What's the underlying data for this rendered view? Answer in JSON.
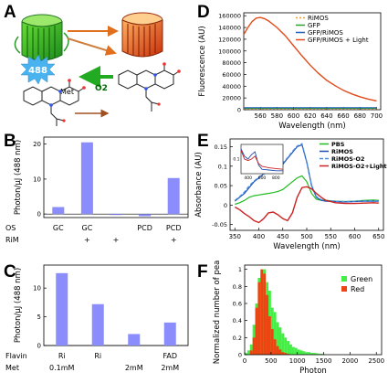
{
  "panel_letters": [
    "A",
    "B",
    "C",
    "D",
    "E",
    "F"
  ],
  "panel_a": {
    "badge": "488",
    "o2_label": "O2",
    "met_label": "Met"
  },
  "chart_data": [
    {
      "panel": "B",
      "type": "bar",
      "ylabel": "Photon/μJ (488 nm)",
      "ylim": [
        -1,
        22
      ],
      "yticks": [
        0,
        10,
        20
      ],
      "categories": [
        "1",
        "2",
        "3",
        "4",
        "5"
      ],
      "values": [
        2.0,
        20.5,
        -0.2,
        -0.6,
        10.3
      ],
      "row_labels": [
        {
          "name": "OS",
          "values": [
            "GC",
            "GC",
            "",
            "PCD",
            "PCD"
          ]
        },
        {
          "name": "RiM",
          "values": [
            "",
            "+",
            "+",
            "",
            "+"
          ]
        }
      ],
      "color": "#8a8dfb"
    },
    {
      "panel": "C",
      "type": "bar",
      "ylabel": "Photon/μJ (488 nm)",
      "ylim": [
        0,
        14
      ],
      "yticks": [
        0,
        5,
        10
      ],
      "categories": [
        "1",
        "2",
        "3",
        "4"
      ],
      "values": [
        12.6,
        7.2,
        2.0,
        4.0
      ],
      "row_labels": [
        {
          "name": "Flavin",
          "values": [
            "Ri",
            "Ri",
            "",
            "FAD"
          ]
        },
        {
          "name": "Met",
          "values": [
            "0.1mM",
            "",
            "2mM",
            "2mM"
          ]
        }
      ],
      "color": "#8a8dfb"
    },
    {
      "panel": "D",
      "type": "line",
      "xlabel": "Wavelength (nm)",
      "ylabel": "Fluorescence (AU)",
      "xlim": [
        540,
        705
      ],
      "ylim": [
        0,
        165000
      ],
      "xticks": [
        560,
        580,
        600,
        620,
        640,
        660,
        680,
        700
      ],
      "yticks": [
        0,
        20000,
        40000,
        60000,
        80000,
        100000,
        120000,
        140000,
        160000
      ],
      "legend": "top-right",
      "series": [
        {
          "name": "RiMOS",
          "color": "#f0a020",
          "dash": "2,2",
          "x": [
            540,
            700
          ],
          "y": [
            1500,
            1500
          ]
        },
        {
          "name": "GFP",
          "color": "#2ca02c",
          "dash": "",
          "x": [
            540,
            700
          ],
          "y": [
            2500,
            2500
          ]
        },
        {
          "name": "GFP/RiMOS",
          "color": "#1f5fb8",
          "dash": "",
          "x": [
            540,
            700
          ],
          "y": [
            3500,
            3500
          ]
        },
        {
          "name": "GFP/RiMOS + Light",
          "color": "#e24a1a",
          "dash": "",
          "x": [
            540,
            545,
            550,
            555,
            560,
            565,
            570,
            580,
            590,
            600,
            610,
            620,
            630,
            640,
            650,
            660,
            670,
            680,
            690,
            700
          ],
          "y": [
            128000,
            140000,
            150000,
            156000,
            157000,
            155000,
            151000,
            140000,
            126000,
            109000,
            92000,
            76000,
            62000,
            50000,
            41000,
            33000,
            27000,
            22000,
            18000,
            15000
          ]
        }
      ]
    },
    {
      "panel": "E",
      "type": "line",
      "xlabel": "Wavelength (nm)",
      "ylabel": "Absorbance (AU)",
      "xlim": [
        340,
        660
      ],
      "ylim": [
        -0.065,
        0.17
      ],
      "xticks": [
        350,
        400,
        450,
        500,
        550,
        600,
        650
      ],
      "yticks": [
        -0.05,
        0,
        0.05,
        0.1,
        0.15
      ],
      "legend": "top-right",
      "series": [
        {
          "name": "PBS",
          "color": "#22bb22",
          "dash": "",
          "x": [
            350,
            360,
            370,
            380,
            390,
            400,
            410,
            420,
            430,
            440,
            450,
            460,
            470,
            480,
            490,
            500,
            510,
            520,
            530,
            540,
            560,
            580,
            600,
            620,
            640,
            650
          ],
          "y": [
            0.002,
            0.006,
            0.012,
            0.02,
            0.024,
            0.026,
            0.028,
            0.03,
            0.032,
            0.035,
            0.04,
            0.05,
            0.06,
            0.07,
            0.075,
            0.06,
            0.03,
            0.015,
            0.012,
            0.012,
            0.01,
            0.009,
            0.01,
            0.012,
            0.013,
            0.012
          ]
        },
        {
          "name": "RiMOS",
          "color": "#1f4fb0",
          "dash": "",
          "x": [
            350,
            360,
            370,
            380,
            390,
            400,
            410,
            420,
            430,
            440,
            450,
            460,
            470,
            480,
            490,
            500,
            510,
            520,
            530,
            540,
            560,
            580,
            600,
            620,
            640,
            650
          ],
          "y": [
            0.01,
            0.02,
            0.03,
            0.045,
            0.06,
            0.07,
            0.08,
            0.085,
            0.09,
            0.095,
            0.105,
            0.12,
            0.135,
            0.15,
            0.155,
            0.11,
            0.05,
            0.02,
            0.012,
            0.01,
            0.009,
            0.008,
            0.009,
            0.01,
            0.01,
            0.01
          ]
        },
        {
          "name": "RiMOS·O2",
          "color": "#4a90e2",
          "dash": "4,2",
          "x": [
            350,
            360,
            370,
            380,
            390,
            400,
            410,
            420,
            430,
            440,
            450,
            460,
            470,
            480,
            490,
            500,
            510,
            520,
            530,
            540,
            560,
            580,
            600,
            620,
            640,
            650
          ],
          "y": [
            0.012,
            0.022,
            0.034,
            0.05,
            0.062,
            0.072,
            0.08,
            0.086,
            0.092,
            0.098,
            0.108,
            0.122,
            0.138,
            0.152,
            0.158,
            0.112,
            0.052,
            0.022,
            0.014,
            0.012,
            0.01,
            0.009,
            0.01,
            0.011,
            0.011,
            0.011
          ]
        },
        {
          "name": "RiMOS·O2+Light",
          "color": "#cc2222",
          "dash": "",
          "x": [
            350,
            360,
            370,
            380,
            390,
            400,
            410,
            420,
            430,
            440,
            450,
            460,
            470,
            480,
            490,
            500,
            510,
            520,
            530,
            540,
            560,
            580,
            600,
            620,
            640,
            650
          ],
          "y": [
            -0.005,
            -0.012,
            -0.022,
            -0.03,
            -0.04,
            -0.045,
            -0.035,
            -0.02,
            -0.018,
            -0.025,
            -0.035,
            -0.04,
            -0.02,
            0.02,
            0.045,
            0.047,
            0.042,
            0.03,
            0.02,
            0.012,
            0.006,
            0.004,
            0.004,
            0.005,
            0.006,
            0.005
          ]
        }
      ],
      "inset": {
        "xlim": [
          300,
          900
        ],
        "ylim": [
          0,
          0.2
        ],
        "xticks": [
          400,
          600,
          800
        ],
        "yticks": [
          0.1
        ],
        "series": [
          {
            "color": "#1f4fb0",
            "x": [
              300,
              350,
              400,
              450,
              500,
              550,
              600,
              700,
              800,
              900
            ],
            "y": [
              0.17,
              0.12,
              0.1,
              0.13,
              0.15,
              0.06,
              0.03,
              0.025,
              0.02,
              0.02
            ]
          },
          {
            "color": "#cc2222",
            "x": [
              300,
              350,
              400,
              450,
              500,
              550,
              600,
              700,
              800,
              900
            ],
            "y": [
              0.16,
              0.1,
              0.09,
              0.1,
              0.12,
              0.07,
              0.05,
              0.04,
              0.035,
              0.03
            ]
          }
        ]
      }
    },
    {
      "panel": "F",
      "type": "bar",
      "xlabel": "Photon",
      "ylabel": "Normalized number of peak",
      "xlim": [
        0,
        2600
      ],
      "ylim": [
        0,
        1.05
      ],
      "xticks": [
        0,
        500,
        1000,
        1500,
        2000,
        2500
      ],
      "yticks": [
        0,
        0.2,
        0.4,
        0.6,
        0.8,
        1.0
      ],
      "legend": "top-right",
      "bin_width": 50,
      "series": [
        {
          "name": "Green",
          "color": "#44ee44",
          "bin_starts": [
            0,
            50,
            100,
            150,
            200,
            250,
            300,
            350,
            400,
            450,
            500,
            550,
            600,
            650,
            700,
            750,
            800,
            850,
            900,
            950,
            1000,
            1050,
            1100,
            1150,
            1200,
            1250,
            1300,
            1350,
            1400,
            1450,
            1500
          ],
          "values": [
            0.02,
            0.05,
            0.12,
            0.35,
            0.6,
            0.9,
            0.95,
            1.0,
            0.85,
            0.75,
            0.55,
            0.5,
            0.38,
            0.32,
            0.25,
            0.2,
            0.16,
            0.12,
            0.09,
            0.08,
            0.06,
            0.05,
            0.04,
            0.03,
            0.03,
            0.02,
            0.02,
            0.015,
            0.01,
            0.01,
            0.005
          ]
        },
        {
          "name": "Red",
          "color": "#ee4411",
          "bin_starts": [
            100,
            150,
            200,
            250,
            300,
            350,
            400,
            450,
            500,
            550,
            600,
            650,
            700,
            750,
            800
          ],
          "values": [
            0.05,
            0.2,
            0.55,
            0.85,
            1.0,
            0.95,
            0.7,
            0.45,
            0.3,
            0.18,
            0.1,
            0.06,
            0.03,
            0.02,
            0.01
          ]
        }
      ]
    }
  ]
}
